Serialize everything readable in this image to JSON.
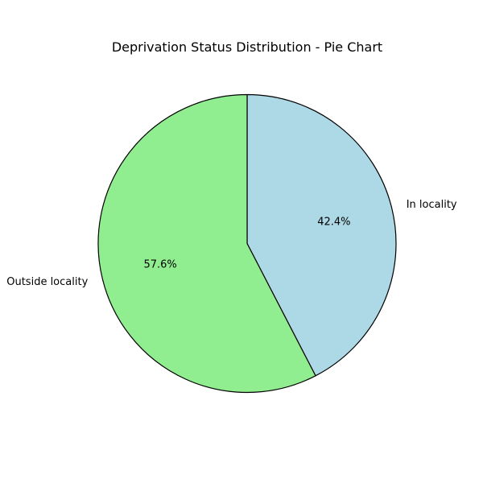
{
  "chart_data": {
    "type": "pie",
    "title": "Deprivation Status Distribution - Pie Chart",
    "slices": [
      {
        "label": "In locality",
        "value": 42.4,
        "pct_label": "42.4%",
        "color": "#add8e6"
      },
      {
        "label": "Outside locality",
        "value": 57.6,
        "pct_label": "57.6%",
        "color": "#90ee90"
      }
    ],
    "start_angle_deg": 90,
    "direction": "clockwise",
    "edge_color": "#000000",
    "legend": false
  }
}
